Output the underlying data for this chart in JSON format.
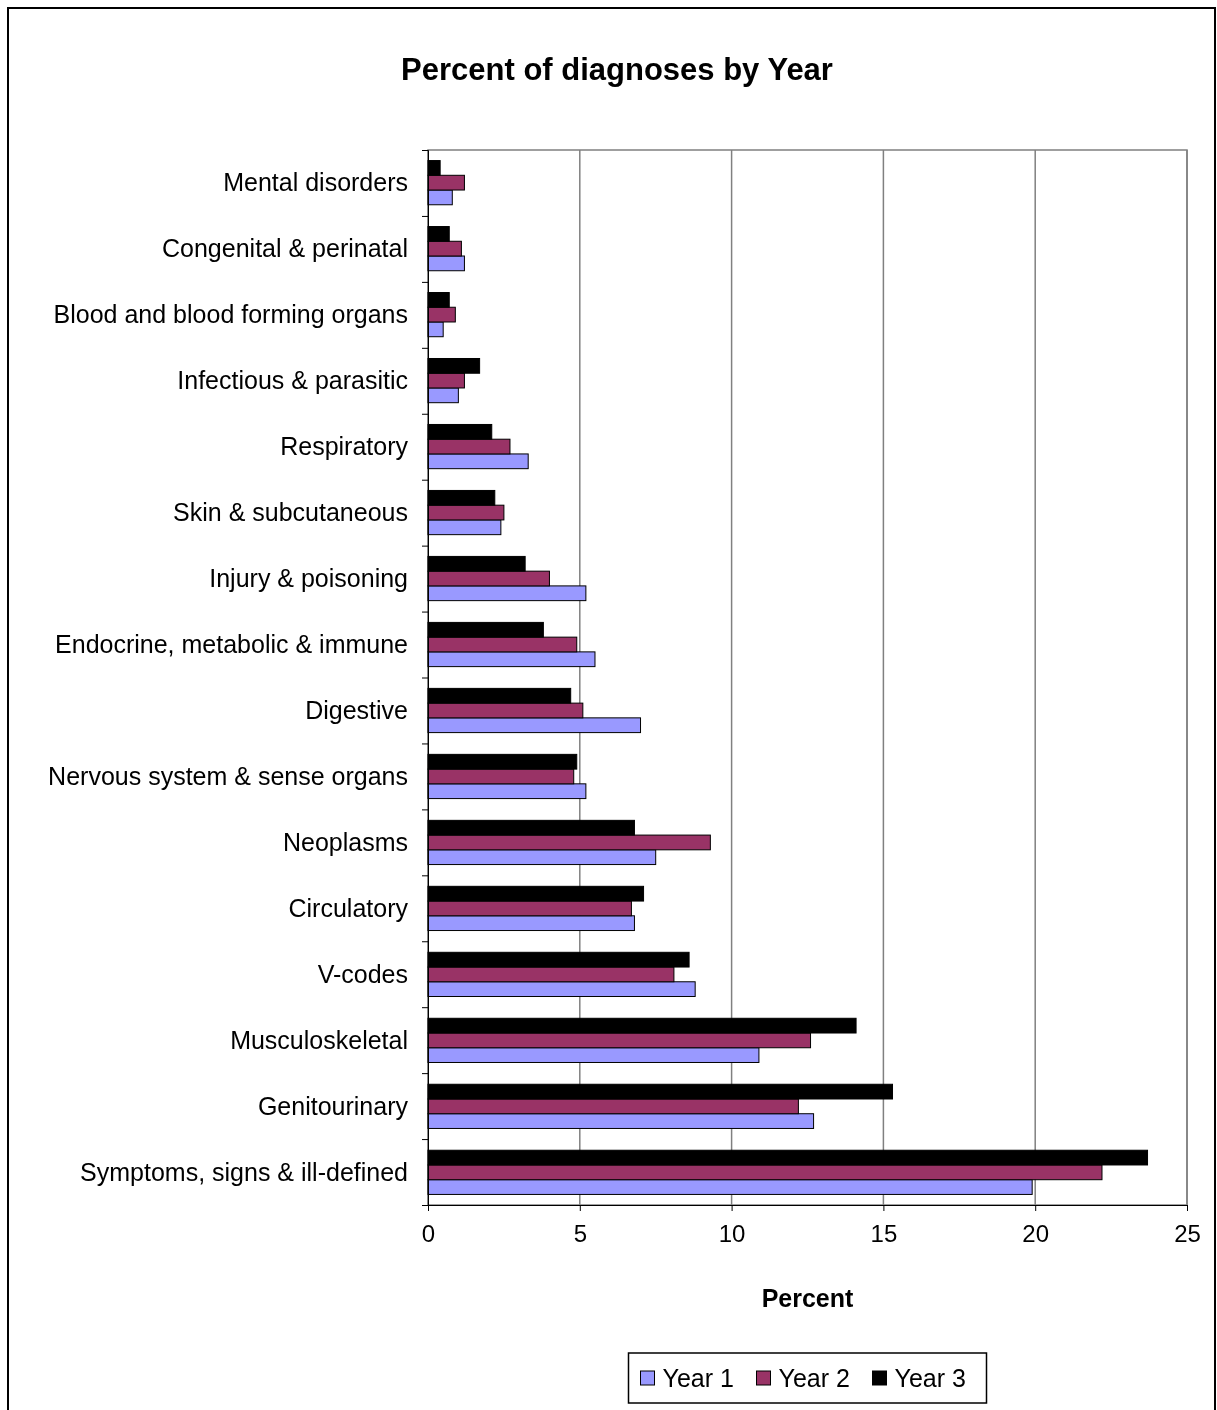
{
  "chart_data": {
    "type": "bar",
    "orientation": "horizontal",
    "title": "Percent of diagnoses by Year",
    "xlabel": "Percent",
    "categories": [
      "Mental disorders",
      "Congenital & perinatal",
      "Blood and blood forming organs",
      "Infectious & parasitic",
      "Respiratory",
      "Skin & subcutaneous",
      "Injury & poisoning",
      "Endocrine, metabolic & immune",
      "Digestive",
      "Nervous system & sense organs",
      "Neoplasms",
      "Circulatory",
      "V-codes",
      "Musculoskeletal",
      "Genitourinary",
      "Symptoms, signs & ill-defined"
    ],
    "series": [
      {
        "name": "Year 1",
        "color": "#9999ff",
        "values": [
          0.8,
          1.2,
          0.5,
          1.0,
          3.3,
          2.4,
          5.2,
          5.5,
          7.0,
          5.2,
          7.5,
          6.8,
          8.8,
          10.9,
          12.7,
          19.9
        ]
      },
      {
        "name": "Year 2",
        "color": "#993366",
        "values": [
          1.2,
          1.1,
          0.9,
          1.2,
          2.7,
          2.5,
          4.0,
          4.9,
          5.1,
          4.8,
          9.3,
          6.7,
          8.1,
          12.6,
          12.2,
          22.2
        ]
      },
      {
        "name": "Year 3",
        "color": "#000000",
        "values": [
          0.4,
          0.7,
          0.7,
          1.7,
          2.1,
          2.2,
          3.2,
          3.8,
          4.7,
          4.9,
          6.8,
          7.1,
          8.6,
          14.1,
          15.3,
          23.7
        ]
      }
    ],
    "xlim": [
      0,
      25
    ],
    "xticks": [
      0,
      5,
      10,
      15,
      20,
      25
    ],
    "grid": "x",
    "legend": "bottom"
  }
}
